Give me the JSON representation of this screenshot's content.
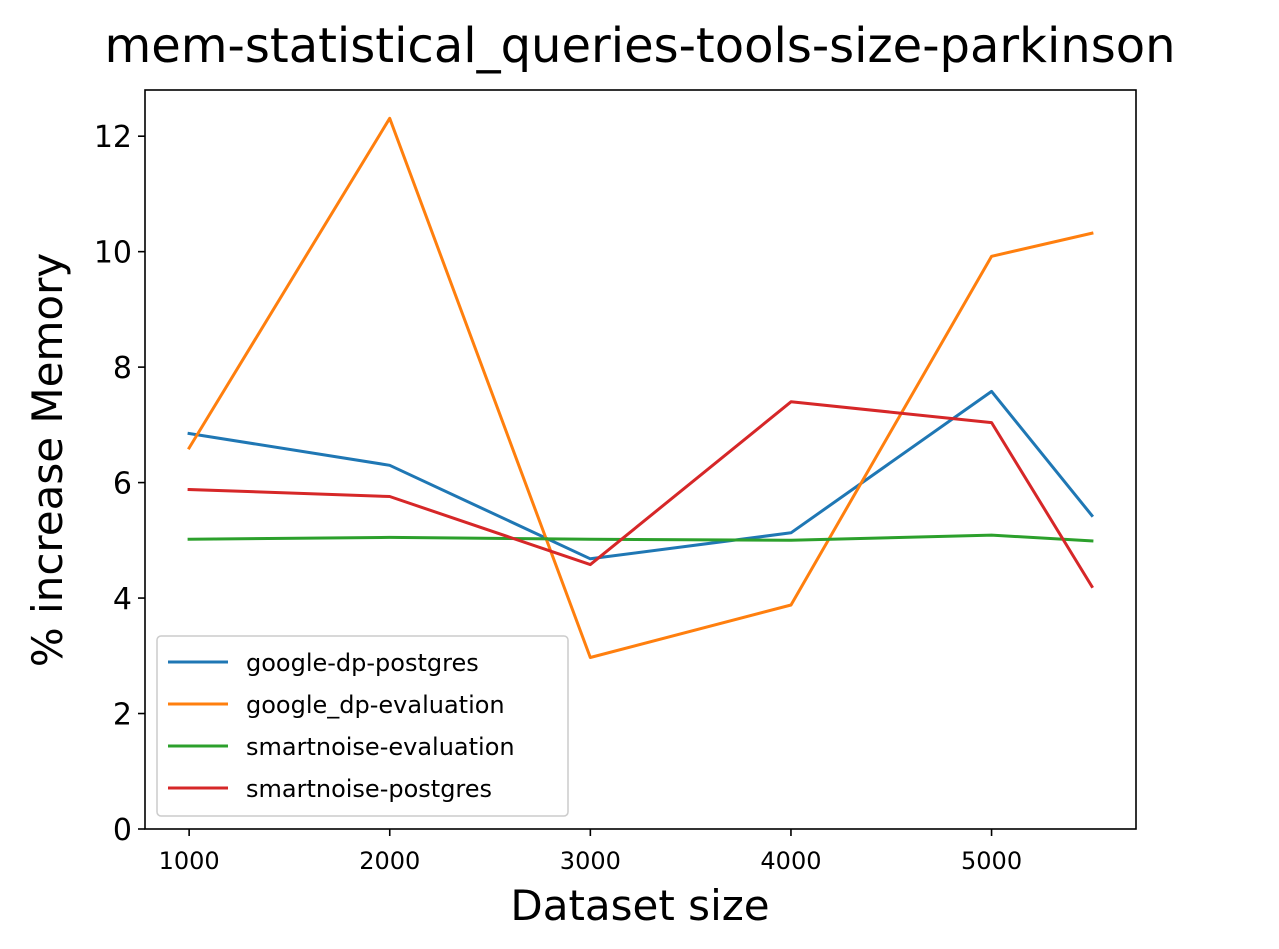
{
  "chart_data": {
    "type": "line",
    "title": "mem-statistical_queries-tools-size-parkinson",
    "xlabel": "Dataset size",
    "ylabel": "% increase Memory",
    "x": [
      1000,
      2000,
      3000,
      4000,
      5000,
      5500
    ],
    "x_ticks": [
      "1000",
      "2000",
      "3000",
      "4000",
      "5000"
    ],
    "y_ticks": [
      "0",
      "2",
      "4",
      "6",
      "8",
      "10",
      "12"
    ],
    "xlim": [
      780,
      5720
    ],
    "ylim": [
      0,
      12.8
    ],
    "grid": false,
    "legend_position": "lower-left",
    "series": [
      {
        "name": "google-dp-postgres",
        "color": "#1f77b4",
        "values": [
          6.85,
          6.3,
          4.68,
          5.13,
          7.58,
          5.43
        ]
      },
      {
        "name": "google_dp-evaluation",
        "color": "#ff7f0e",
        "values": [
          6.6,
          12.31,
          2.97,
          3.88,
          9.92,
          10.32
        ]
      },
      {
        "name": "smartnoise-evaluation",
        "color": "#2ca02c",
        "values": [
          5.02,
          5.05,
          5.02,
          5.0,
          5.09,
          4.99
        ]
      },
      {
        "name": "smartnoise-postgres",
        "color": "#d62728",
        "values": [
          5.88,
          5.76,
          4.58,
          7.4,
          7.04,
          4.2
        ]
      }
    ]
  }
}
